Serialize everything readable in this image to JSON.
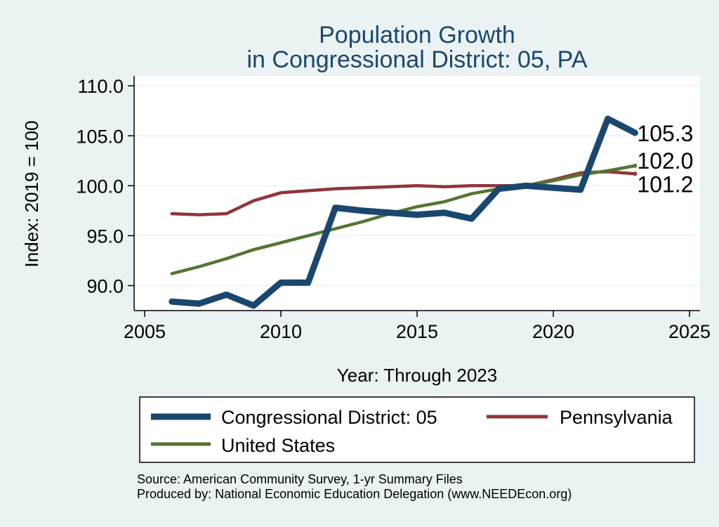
{
  "chart_data": {
    "type": "line",
    "title": "Population Growth",
    "subtitle": "in Congressional District: 05, PA",
    "xlabel": "Year: Through 2023",
    "ylabel": "Index: 2019 = 100",
    "xlim": [
      2005,
      2025
    ],
    "ylim": [
      87.5,
      111
    ],
    "xticks": [
      "2005",
      "2010",
      "2015",
      "2020",
      "2025"
    ],
    "yticks": [
      "90.0",
      "95.0",
      "100.0",
      "105.0",
      "110.0"
    ],
    "grid": true,
    "x": [
      2006,
      2007,
      2008,
      2009,
      2010,
      2011,
      2012,
      2013,
      2014,
      2015,
      2016,
      2017,
      2018,
      2019,
      2020,
      2021,
      2022,
      2023
    ],
    "series": [
      {
        "name": "Congressional District: 05",
        "color": "#1a476f",
        "values": [
          88.4,
          88.2,
          89.1,
          88.0,
          90.3,
          90.3,
          97.8,
          97.5,
          97.3,
          97.1,
          97.3,
          96.7,
          99.7,
          100.0,
          99.8,
          99.6,
          106.7,
          105.3
        ],
        "end_label": "105.3"
      },
      {
        "name": "Pennsylvania",
        "color": "#90353b",
        "values": [
          97.2,
          97.1,
          97.2,
          98.5,
          99.3,
          99.5,
          99.7,
          99.8,
          99.9,
          100.0,
          99.9,
          100.0,
          100.0,
          100.0,
          100.6,
          101.3,
          101.4,
          101.2
        ],
        "end_label": "101.2"
      },
      {
        "name": "United States",
        "color": "#55752f",
        "values": [
          91.2,
          91.9,
          92.7,
          93.6,
          94.3,
          95.0,
          95.7,
          96.4,
          97.2,
          97.9,
          98.4,
          99.2,
          99.7,
          100.0,
          100.5,
          101.1,
          101.5,
          102.0
        ],
        "end_label": "102.0"
      }
    ],
    "legend": {
      "position": "bottom",
      "entries": [
        "Congressional District: 05",
        "Pennsylvania",
        "United States"
      ]
    },
    "notes": [
      "Source: American Community Survey, 1-yr Summary Files",
      "Produced by: National Economic Education Delegation (www.NEEDEcon.org)"
    ]
  }
}
